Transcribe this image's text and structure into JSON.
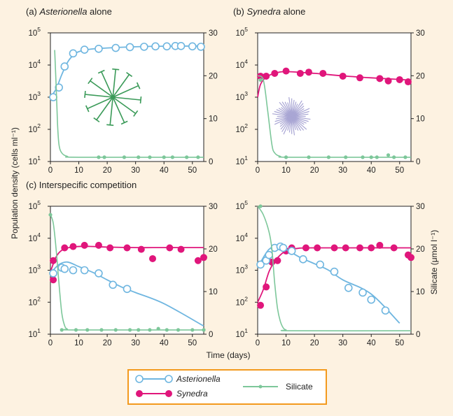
{
  "colors": {
    "background": "#fdf2e1",
    "plot_background": "#ffffff",
    "asterionella": "#6fb6e0",
    "synedra": "#e0167b",
    "silicate": "#7dc79a",
    "legend_border": "#f39a1e",
    "axis": "#222222",
    "asterionella_icon": "#3a9a58",
    "synedra_icon": "#a9a6d4"
  },
  "axis_labels": {
    "x": "Time (days)",
    "y_left": "Population density (cells ml⁻¹)",
    "y_right": "Silicate (μmol l⁻¹)"
  },
  "legend": {
    "asterionella": "Asterionella",
    "synedra": "Synedra",
    "silicate": "Silicate"
  },
  "illustrations": {
    "panel_a": "asterionella-colony-icon",
    "panel_b": "synedra-colony-icon"
  },
  "chart_data": [
    {
      "type": "line",
      "panel": "a",
      "title_prefix": "(a) ",
      "title_species": "Asterionella",
      "title_suffix": " alone",
      "x_ticks": [
        0,
        10,
        20,
        30,
        40,
        50
      ],
      "xlim": [
        0,
        54
      ],
      "y_left_scale": "log",
      "y_left_ticks": [
        "10",
        "10",
        "10",
        "10",
        "10"
      ],
      "y_left_exponents": [
        "1",
        "2",
        "3",
        "4",
        "5"
      ],
      "ylim_left": [
        10,
        100000
      ],
      "y_right_ticks": [
        0,
        10,
        20,
        30
      ],
      "ylim_right": [
        0,
        30
      ],
      "series": [
        {
          "name": "Asterionella",
          "axis": "left",
          "style": "open",
          "points": [
            [
              1,
              1000
            ],
            [
              3,
              2000
            ],
            [
              5,
              9000
            ],
            [
              8,
              23000
            ],
            [
              12,
              30000
            ],
            [
              17,
              32000
            ],
            [
              23,
              34000
            ],
            [
              28,
              36000
            ],
            [
              33,
              37000
            ],
            [
              37,
              38000
            ],
            [
              41,
              38000
            ],
            [
              44,
              39000
            ],
            [
              46,
              39000
            ],
            [
              50,
              38000
            ],
            [
              53,
              37000
            ]
          ],
          "curve": [
            [
              0,
              1000
            ],
            [
              2,
              1800
            ],
            [
              4,
              5000
            ],
            [
              6,
              12000
            ],
            [
              8,
              20000
            ],
            [
              10,
              26000
            ],
            [
              14,
              31000
            ],
            [
              20,
              34000
            ],
            [
              30,
              37000
            ],
            [
              40,
              38500
            ],
            [
              54,
              39000
            ]
          ]
        },
        {
          "name": "Silicate",
          "axis": "right",
          "style": "small",
          "points": [
            [
              17,
              1.0
            ],
            [
              19,
              1.0
            ],
            [
              26,
              1.0
            ],
            [
              31,
              1.0
            ],
            [
              35,
              1.0
            ],
            [
              40,
              1.0
            ],
            [
              43,
              1.0
            ],
            [
              48,
              1.0
            ],
            [
              52,
              1.0
            ]
          ],
          "curve": [
            [
              1.5,
              26
            ],
            [
              2,
              18
            ],
            [
              2.5,
              9
            ],
            [
              3,
              4
            ],
            [
              4,
              2
            ],
            [
              6,
              1.2
            ],
            [
              10,
              1.0
            ],
            [
              54,
              1.0
            ]
          ]
        }
      ]
    },
    {
      "type": "line",
      "panel": "b",
      "title_prefix": "(b) ",
      "title_species": "Synedra",
      "title_suffix": " alone",
      "x_ticks": [
        0,
        10,
        20,
        30,
        40,
        50
      ],
      "xlim": [
        0,
        54
      ],
      "y_left_scale": "log",
      "y_left_ticks": [
        "10",
        "10",
        "10",
        "10",
        "10"
      ],
      "y_left_exponents": [
        "1",
        "2",
        "3",
        "4",
        "5"
      ],
      "ylim_left": [
        10,
        100000
      ],
      "y_right_ticks": [
        0,
        10,
        20,
        30
      ],
      "ylim_right": [
        0,
        30
      ],
      "series": [
        {
          "name": "Synedra",
          "axis": "right_level",
          "style": "filled",
          "points": [
            [
              1,
              4500
            ],
            [
              3,
              4500
            ],
            [
              6,
              5500
            ],
            [
              10,
              6500
            ],
            [
              15,
              5500
            ],
            [
              18,
              6000
            ],
            [
              23,
              5500
            ],
            [
              30,
              4500
            ],
            [
              36,
              4000
            ],
            [
              43,
              3800
            ],
            [
              46,
              3200
            ],
            [
              50,
              3500
            ],
            [
              53,
              3000
            ]
          ],
          "curve": [
            [
              0,
              1000
            ],
            [
              1,
              2500
            ],
            [
              3,
              4200
            ],
            [
              6,
              5500
            ],
            [
              10,
              6200
            ],
            [
              20,
              5500
            ],
            [
              30,
              4600
            ],
            [
              40,
              4000
            ],
            [
              54,
              3400
            ]
          ]
        },
        {
          "name": "Silicate",
          "axis": "right",
          "style": "small",
          "points": [
            [
              1,
              19
            ],
            [
              10,
              1.0
            ],
            [
              18,
              1.0
            ],
            [
              25,
              1.0
            ],
            [
              31,
              1.0
            ],
            [
              37,
              1.0
            ],
            [
              40,
              1.0
            ],
            [
              42,
              1.0
            ],
            [
              46,
              1.5
            ],
            [
              48,
              1.0
            ],
            [
              52,
              1.0
            ]
          ],
          "curve": [
            [
              0,
              20
            ],
            [
              2,
              19
            ],
            [
              3.5,
              12
            ],
            [
              5,
              4
            ],
            [
              6,
              2
            ],
            [
              8,
              1.2
            ],
            [
              12,
              1.0
            ],
            [
              54,
              1.0
            ]
          ]
        }
      ]
    },
    {
      "type": "line",
      "panel": "c",
      "title_prefix": "(c) ",
      "title_species": "",
      "title_suffix": "Interspecific competition",
      "x_ticks": [
        0,
        10,
        20,
        30,
        40,
        50
      ],
      "xlim": [
        0,
        54
      ],
      "y_left_scale": "log",
      "y_left_ticks": [
        "10",
        "10",
        "10",
        "10",
        "10"
      ],
      "y_left_exponents": [
        "1",
        "2",
        "3",
        "4",
        "5"
      ],
      "ylim_left": [
        10,
        100000
      ],
      "y_right_ticks": [
        0,
        10,
        20,
        30
      ],
      "ylim_right": [
        0,
        30
      ],
      "series": [
        {
          "name": "Synedra",
          "axis": "left",
          "style": "filled",
          "points": [
            [
              1,
              500
            ],
            [
              1,
              2000
            ],
            [
              5,
              5000
            ],
            [
              8,
              5500
            ],
            [
              12,
              6000
            ],
            [
              17,
              6000
            ],
            [
              21,
              5000
            ],
            [
              27,
              5000
            ],
            [
              32,
              4500
            ],
            [
              36,
              2300
            ],
            [
              42,
              5000
            ],
            [
              46,
              4500
            ],
            [
              52,
              2000
            ],
            [
              54,
              2500
            ]
          ],
          "curve": [
            [
              0,
              900
            ],
            [
              2,
              2600
            ],
            [
              4,
              4200
            ],
            [
              7,
              5200
            ],
            [
              12,
              5600
            ],
            [
              20,
              5300
            ],
            [
              30,
              5100
            ],
            [
              40,
              5100
            ],
            [
              54,
              5100
            ]
          ]
        },
        {
          "name": "Asterionella",
          "axis": "left",
          "style": "open",
          "points": [
            [
              1,
              800
            ],
            [
              4,
              1200
            ],
            [
              5,
              1100
            ],
            [
              8,
              1000
            ],
            [
              12,
              1000
            ],
            [
              17,
              800
            ],
            [
              22,
              350
            ],
            [
              27,
              260
            ]
          ],
          "curve": [
            [
              0,
              800
            ],
            [
              3,
              1500
            ],
            [
              6,
              1800
            ],
            [
              10,
              1300
            ],
            [
              15,
              850
            ],
            [
              20,
              500
            ],
            [
              25,
              300
            ],
            [
              30,
              200
            ],
            [
              40,
              90
            ],
            [
              54,
              18
            ]
          ]
        },
        {
          "name": "Silicate",
          "axis": "right",
          "style": "small",
          "points": [
            [
              0,
              28
            ],
            [
              4,
              1.0
            ],
            [
              9,
              1.0
            ],
            [
              13,
              1.0
            ],
            [
              18,
              1.0
            ],
            [
              23,
              1.0
            ],
            [
              28,
              1.0
            ],
            [
              31,
              1.0
            ],
            [
              35,
              1.0
            ],
            [
              38,
              1.3
            ],
            [
              41,
              1.0
            ],
            [
              45,
              1.0
            ],
            [
              50,
              1.0
            ],
            [
              54,
              1.0
            ]
          ],
          "curve": [
            [
              0,
              28
            ],
            [
              1,
              26
            ],
            [
              2,
              20
            ],
            [
              3,
              12
            ],
            [
              4,
              5
            ],
            [
              5,
              2
            ],
            [
              6,
              1.2
            ],
            [
              8,
              1.0
            ],
            [
              54,
              1.0
            ]
          ]
        }
      ]
    },
    {
      "type": "line",
      "panel": "d",
      "title_prefix": "",
      "title_species": "",
      "title_suffix": "",
      "x_ticks": [
        0,
        10,
        20,
        30,
        40,
        50
      ],
      "xlim": [
        0,
        54
      ],
      "y_left_scale": "log",
      "y_left_ticks": [
        "10",
        "10",
        "10",
        "10",
        "10"
      ],
      "y_left_exponents": [
        "1",
        "2",
        "3",
        "4",
        "5"
      ],
      "ylim_left": [
        10,
        100000
      ],
      "y_right_ticks": [
        0,
        10,
        20,
        30
      ],
      "ylim_right": [
        0,
        30
      ],
      "series": [
        {
          "name": "Synedra",
          "axis": "left",
          "style": "filled",
          "points": [
            [
              1,
              80
            ],
            [
              3,
              300
            ],
            [
              5,
              1800
            ],
            [
              7,
              2000
            ],
            [
              10,
              4000
            ],
            [
              12,
              5000
            ],
            [
              17,
              5000
            ],
            [
              21,
              5000
            ],
            [
              27,
              5000
            ],
            [
              31,
              5000
            ],
            [
              36,
              5000
            ],
            [
              40,
              5000
            ],
            [
              43,
              6000
            ],
            [
              48,
              5000
            ],
            [
              53,
              3000
            ],
            [
              54,
              2500
            ]
          ],
          "curve": [
            [
              0,
              100
            ],
            [
              2,
              250
            ],
            [
              4,
              900
            ],
            [
              6,
              1900
            ],
            [
              8,
              3000
            ],
            [
              10,
              4000
            ],
            [
              14,
              4800
            ],
            [
              20,
              5000
            ],
            [
              54,
              5000
            ]
          ]
        },
        {
          "name": "Asterionella",
          "axis": "left",
          "style": "open",
          "points": [
            [
              1,
              1500
            ],
            [
              3,
              2000
            ],
            [
              4,
              3000
            ],
            [
              6,
              5000
            ],
            [
              8,
              5500
            ],
            [
              9,
              5000
            ],
            [
              12,
              4000
            ],
            [
              16,
              2200
            ],
            [
              22,
              1500
            ],
            [
              27,
              900
            ],
            [
              32,
              280
            ],
            [
              37,
              200
            ],
            [
              40,
              120
            ],
            [
              45,
              55
            ]
          ],
          "curve": [
            [
              0,
              1200
            ],
            [
              2,
              2500
            ],
            [
              4,
              4500
            ],
            [
              6,
              5500
            ],
            [
              8,
              5500
            ],
            [
              10,
              4500
            ],
            [
              15,
              2500
            ],
            [
              20,
              1600
            ],
            [
              25,
              1000
            ],
            [
              30,
              500
            ],
            [
              40,
              180
            ],
            [
              50,
              22
            ]
          ]
        },
        {
          "name": "Silicate",
          "axis": "right",
          "style": "small",
          "points": [
            [
              1,
              30
            ]
          ],
          "curve": [
            [
              0,
              30
            ],
            [
              2,
              28
            ],
            [
              4,
              24
            ],
            [
              5,
              20
            ],
            [
              6,
              12
            ],
            [
              7,
              6
            ],
            [
              8,
              3
            ],
            [
              9,
              1.5
            ],
            [
              10,
              1.0
            ],
            [
              12,
              0.8
            ],
            [
              54,
              0.8
            ]
          ]
        }
      ]
    }
  ]
}
